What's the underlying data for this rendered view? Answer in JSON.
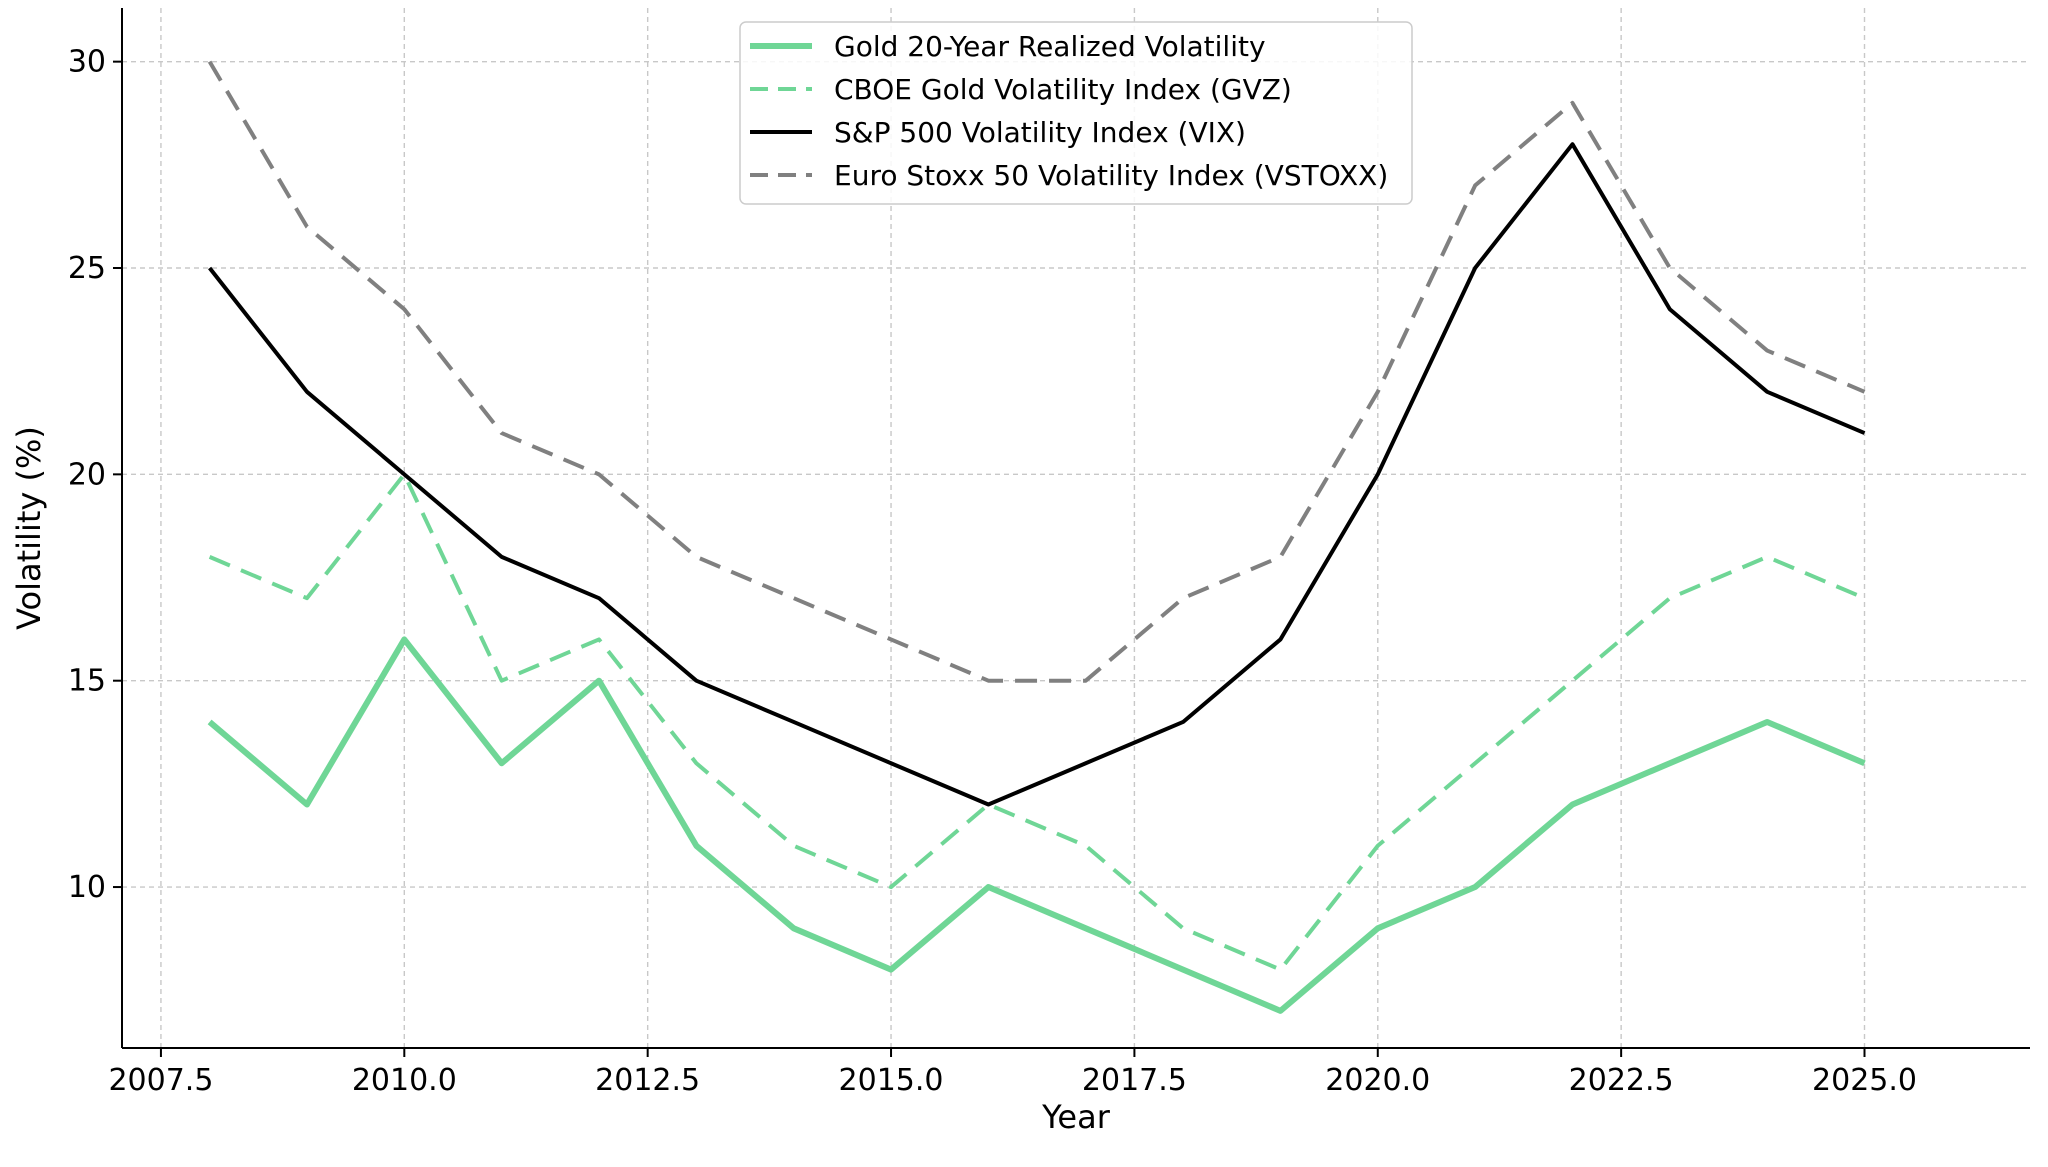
{
  "chart_data": {
    "type": "line",
    "title": "",
    "xlabel": "Year",
    "ylabel": "Volatility (%)",
    "xlim": [
      2007.1,
      2026.7
    ],
    "ylim": [
      6.1,
      31.3
    ],
    "grid": true,
    "legend_position": "top-center",
    "x_ticks": [
      2007.5,
      2010.0,
      2012.5,
      2015.0,
      2017.5,
      2020.0,
      2022.5,
      2025.0
    ],
    "x_tick_labels": [
      "2007.5",
      "2010.0",
      "2012.5",
      "2015.0",
      "2017.5",
      "2020.0",
      "2022.5",
      "2025.0"
    ],
    "y_ticks": [
      10,
      15,
      20,
      25,
      30
    ],
    "y_tick_labels": [
      "10",
      "15",
      "20",
      "25",
      "30"
    ],
    "x": [
      2008,
      2009,
      2010,
      2011,
      2012,
      2013,
      2014,
      2015,
      2016,
      2017,
      2018,
      2019,
      2020,
      2021,
      2022,
      2023,
      2024,
      2025
    ],
    "series": [
      {
        "name": "Gold 20-Year Realized Volatility",
        "color": "#6fd696",
        "style": "solid",
        "width": "thick",
        "values": [
          14,
          12,
          16,
          13,
          15,
          11,
          9,
          8,
          10,
          9,
          8,
          7,
          9,
          10,
          12,
          13,
          14,
          13
        ]
      },
      {
        "name": "CBOE Gold Volatility Index (GVZ)",
        "color": "#6fd696",
        "style": "dashed",
        "width": "medium",
        "values": [
          18,
          17,
          20,
          15,
          16,
          13,
          11,
          10,
          12,
          11,
          9,
          8,
          11,
          13,
          15,
          17,
          18,
          17
        ]
      },
      {
        "name": "S&P 500 Volatility Index (VIX)",
        "color": "#000000",
        "style": "solid",
        "width": "medium",
        "values": [
          25,
          22,
          20,
          18,
          17,
          15,
          14,
          13,
          12,
          13,
          14,
          16,
          20,
          25,
          28,
          24,
          22,
          21
        ]
      },
      {
        "name": "Euro Stoxx 50 Volatility Index (VSTOXX)",
        "color": "#808080",
        "style": "dashed",
        "width": "medium",
        "values": [
          30,
          26,
          24,
          21,
          20,
          18,
          17,
          16,
          15,
          15,
          17,
          18,
          22,
          27,
          29,
          25,
          23,
          22
        ]
      }
    ]
  }
}
